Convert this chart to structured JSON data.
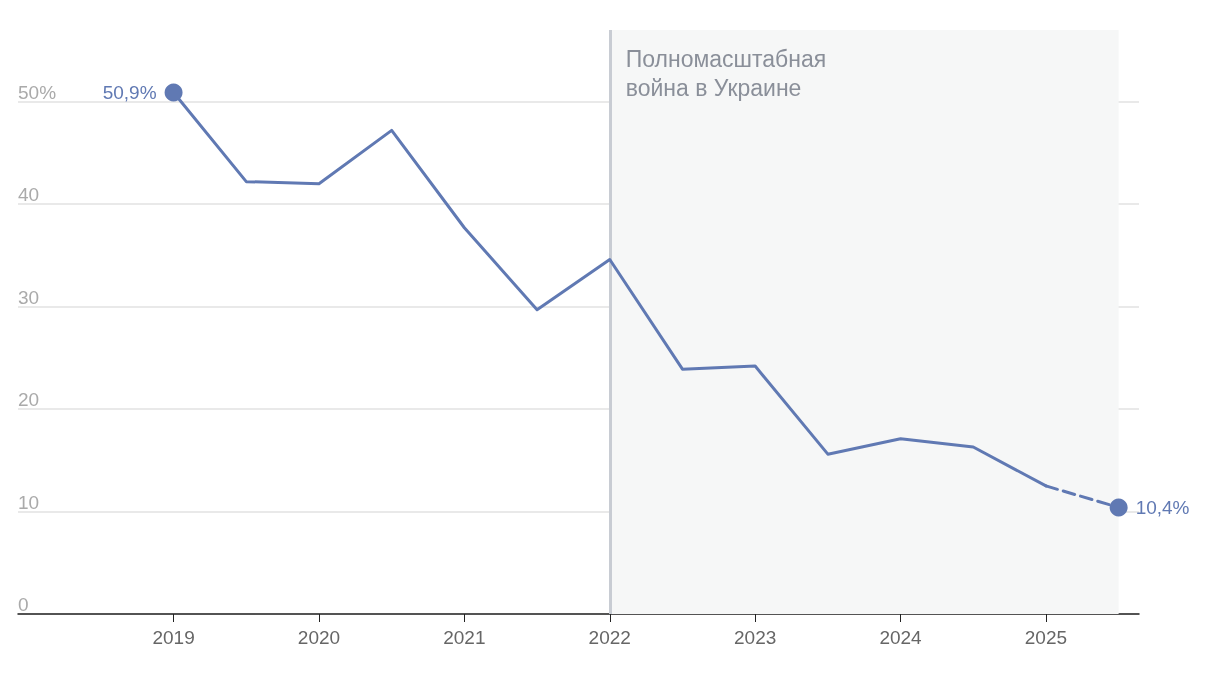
{
  "chart_data": {
    "type": "line",
    "xlim": [
      2017.93,
      2025.64
    ],
    "xticks": [
      2019,
      2020,
      2021,
      2022,
      2023,
      2024,
      2025
    ],
    "ylim": [
      0,
      57
    ],
    "yticks": [
      0,
      10,
      20,
      30,
      40,
      {
        "value": 50,
        "label": "50%"
      }
    ],
    "grid": "y",
    "series": [
      {
        "color": "#6079b3",
        "line_style": "solid",
        "x": [
          2019,
          2019.5,
          2020,
          2020.5,
          2021,
          2021.5,
          2022,
          2022.5,
          2023,
          2023.5,
          2024,
          2024.5,
          2025
        ],
        "values": [
          50.9,
          42.2,
          42.0,
          47.2,
          37.7,
          29.7,
          34.6,
          23.9,
          24.2,
          15.6,
          17.1,
          16.3,
          12.5
        ],
        "value_labels": [
          "50,9%",
          null,
          null,
          null,
          null,
          null,
          null,
          null,
          null,
          null,
          null,
          null,
          null
        ]
      },
      {
        "color": "#6079b3",
        "line_style": "dashed",
        "x": [
          2025,
          2025.5
        ],
        "values": [
          12.5,
          10.4
        ],
        "value_labels": [
          null,
          "10,4%"
        ]
      }
    ],
    "bands": [
      {
        "axis": "x",
        "from": 2022,
        "to": 2025.5,
        "color": "#f6f7f7"
      }
    ],
    "ref_lines": [
      {
        "axis": "x",
        "value": 2022,
        "color": "#c8ccd3",
        "label": "Полномасштабная война в Украине"
      }
    ]
  }
}
